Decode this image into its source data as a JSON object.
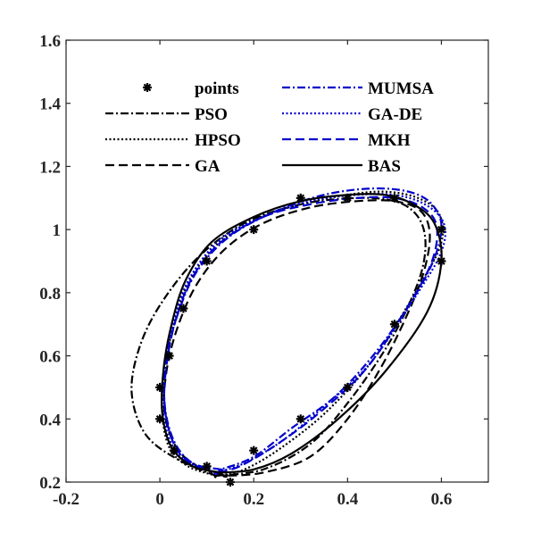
{
  "chart_data": {
    "type": "line",
    "title": "",
    "xlabel": "",
    "ylabel": "",
    "xlim": [
      -0.2,
      0.7
    ],
    "ylim": [
      0.2,
      1.6
    ],
    "x_ticks": [
      -0.2,
      0,
      0.2,
      0.4,
      0.6
    ],
    "x_tick_labels": [
      "-0.2",
      "0",
      "0.2",
      "0.4",
      "0.6"
    ],
    "y_ticks": [
      0.2,
      0.4,
      0.6,
      0.8,
      1.0,
      1.2,
      1.4,
      1.6
    ],
    "y_tick_labels": [
      "0.2",
      "0.4",
      "0.6",
      "0.8",
      "1",
      "1.2",
      "1.4",
      "1.6"
    ],
    "grid": false,
    "legend_position": "top",
    "points": {
      "name": "points",
      "marker": "asterisk",
      "x": [
        0.15,
        0.1,
        0.03,
        0.0,
        0.0,
        0.02,
        0.05,
        0.1,
        0.2,
        0.3,
        0.4,
        0.5,
        0.6,
        0.6,
        0.5,
        0.4,
        0.3,
        0.2
      ],
      "y": [
        0.2,
        0.25,
        0.3,
        0.4,
        0.5,
        0.6,
        0.75,
        0.9,
        1.0,
        1.1,
        1.1,
        1.1,
        1.0,
        0.9,
        0.7,
        0.5,
        0.4,
        0.3
      ]
    },
    "series": [
      {
        "name": "PSO",
        "color": "#000000",
        "dash": "dashdot",
        "x": [
          0.12,
          0.04,
          -0.03,
          -0.06,
          -0.045,
          0.0,
          0.08,
          0.18,
          0.3,
          0.42,
          0.5,
          0.545,
          0.565,
          0.56,
          0.53,
          0.48,
          0.4,
          0.32,
          0.22,
          0.12
        ],
        "y": [
          0.22,
          0.27,
          0.35,
          0.48,
          0.62,
          0.76,
          0.91,
          1.02,
          1.08,
          1.1,
          1.09,
          1.05,
          0.98,
          0.88,
          0.76,
          0.62,
          0.45,
          0.32,
          0.24,
          0.22
        ]
      },
      {
        "name": "HPSO",
        "color": "#000000",
        "dash": "dotted",
        "x": [
          0.12,
          0.06,
          0.02,
          0.005,
          0.01,
          0.03,
          0.06,
          0.12,
          0.2,
          0.3,
          0.4,
          0.48,
          0.55,
          0.595,
          0.6,
          0.56,
          0.46,
          0.36,
          0.26,
          0.18,
          0.12
        ],
        "y": [
          0.22,
          0.25,
          0.31,
          0.42,
          0.56,
          0.7,
          0.83,
          0.95,
          1.03,
          1.08,
          1.11,
          1.12,
          1.1,
          1.05,
          0.96,
          0.84,
          0.6,
          0.43,
          0.31,
          0.24,
          0.22
        ]
      },
      {
        "name": "GA",
        "color": "#000000",
        "dash": "dashed",
        "x": [
          0.14,
          0.08,
          0.035,
          0.01,
          0.015,
          0.04,
          0.08,
          0.14,
          0.22,
          0.32,
          0.42,
          0.5,
          0.555,
          0.575,
          0.565,
          0.53,
          0.47,
          0.4,
          0.32,
          0.22,
          0.14
        ],
        "y": [
          0.22,
          0.25,
          0.31,
          0.42,
          0.56,
          0.7,
          0.83,
          0.94,
          1.02,
          1.07,
          1.09,
          1.09,
          1.06,
          0.99,
          0.88,
          0.74,
          0.56,
          0.4,
          0.28,
          0.23,
          0.22
        ]
      },
      {
        "name": "MUMSA",
        "color": "#0000cc",
        "dash": "dashdot",
        "x": [
          0.13,
          0.07,
          0.03,
          0.01,
          0.015,
          0.04,
          0.08,
          0.15,
          0.25,
          0.35,
          0.45,
          0.53,
          0.58,
          0.6,
          0.57,
          0.48,
          0.38,
          0.28,
          0.2,
          0.13
        ],
        "y": [
          0.24,
          0.26,
          0.33,
          0.45,
          0.6,
          0.74,
          0.87,
          0.98,
          1.06,
          1.11,
          1.13,
          1.12,
          1.08,
          1.0,
          0.86,
          0.65,
          0.48,
          0.37,
          0.28,
          0.24
        ]
      },
      {
        "name": "GA-DE",
        "color": "#0000cc",
        "dash": "dotted",
        "x": [
          0.12,
          0.065,
          0.025,
          0.005,
          0.01,
          0.03,
          0.065,
          0.13,
          0.22,
          0.32,
          0.42,
          0.5,
          0.565,
          0.605,
          0.6,
          0.55,
          0.45,
          0.35,
          0.26,
          0.18,
          0.12
        ],
        "y": [
          0.23,
          0.26,
          0.32,
          0.44,
          0.58,
          0.72,
          0.85,
          0.97,
          1.04,
          1.09,
          1.11,
          1.11,
          1.08,
          1.02,
          0.93,
          0.8,
          0.58,
          0.44,
          0.33,
          0.26,
          0.23
        ]
      },
      {
        "name": "MKH",
        "color": "#0000cc",
        "dash": "dashed",
        "x": [
          0.12,
          0.065,
          0.03,
          0.01,
          0.015,
          0.035,
          0.07,
          0.13,
          0.22,
          0.32,
          0.42,
          0.5,
          0.56,
          0.59,
          0.58,
          0.53,
          0.44,
          0.34,
          0.25,
          0.17,
          0.12
        ],
        "y": [
          0.23,
          0.26,
          0.32,
          0.44,
          0.58,
          0.72,
          0.85,
          0.96,
          1.04,
          1.08,
          1.1,
          1.1,
          1.07,
          1.01,
          0.9,
          0.76,
          0.56,
          0.42,
          0.32,
          0.25,
          0.23
        ]
      },
      {
        "name": "BAS",
        "color": "#000000",
        "dash": "solid",
        "x": [
          0.13,
          0.07,
          0.025,
          0.005,
          0.008,
          0.025,
          0.055,
          0.11,
          0.2,
          0.3,
          0.4,
          0.48,
          0.54,
          0.585,
          0.6,
          0.57,
          0.48,
          0.38,
          0.28,
          0.2,
          0.13
        ],
        "y": [
          0.23,
          0.25,
          0.31,
          0.42,
          0.56,
          0.7,
          0.84,
          0.96,
          1.04,
          1.09,
          1.11,
          1.11,
          1.08,
          1.02,
          0.9,
          0.74,
          0.55,
          0.4,
          0.29,
          0.24,
          0.23
        ]
      }
    ]
  }
}
